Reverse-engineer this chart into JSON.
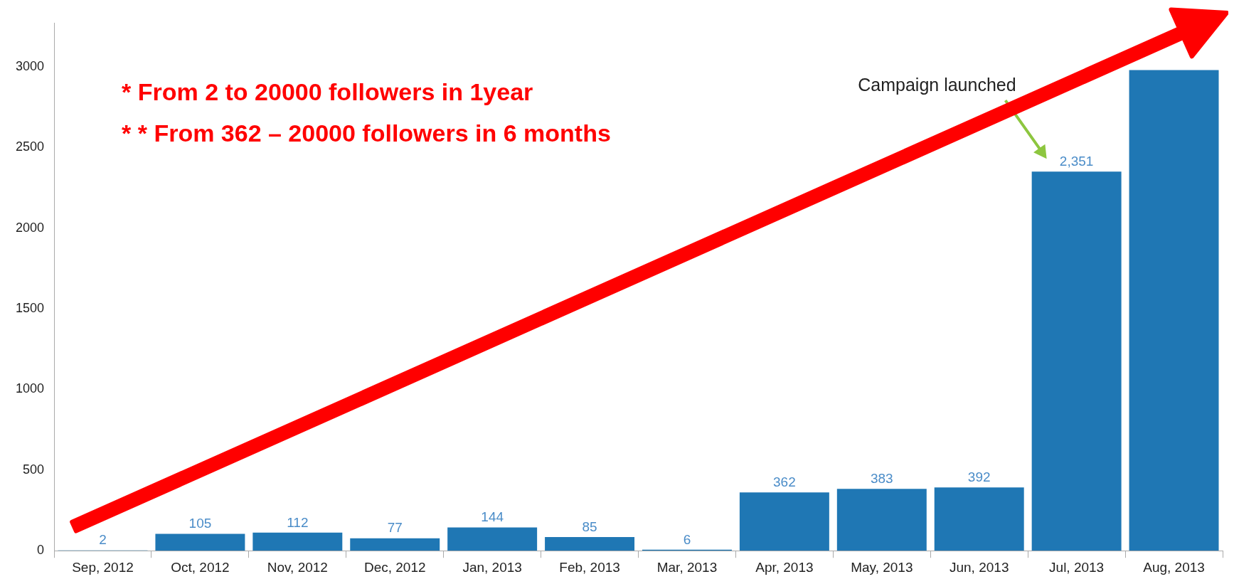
{
  "chart_data": {
    "type": "bar",
    "categories": [
      "Sep, 2012",
      "Oct, 2012",
      "Nov, 2012",
      "Dec, 2012",
      "Jan, 2013",
      "Feb, 2013",
      "Mar, 2013",
      "Apr, 2013",
      "May, 2013",
      "Jun, 2013",
      "Jul, 2013",
      "Aug, 2013"
    ],
    "values": [
      2,
      105,
      112,
      77,
      144,
      85,
      6,
      362,
      383,
      392,
      2351,
      2980
    ],
    "value_labels": [
      "2",
      "105",
      "112",
      "77",
      "144",
      "85",
      "6",
      "362",
      "383",
      "392",
      "2,351",
      null
    ],
    "color": "#1f77b4",
    "ylim": [
      0,
      3270
    ],
    "yticks": [
      0,
      500,
      1000,
      1500,
      2000,
      2500,
      3000
    ],
    "grid": false,
    "annotations": [
      "* From 2 to 20000 followers in 1year",
      "* * From 362 – 20000 followers in 6 months",
      "Campaign launched"
    ]
  }
}
